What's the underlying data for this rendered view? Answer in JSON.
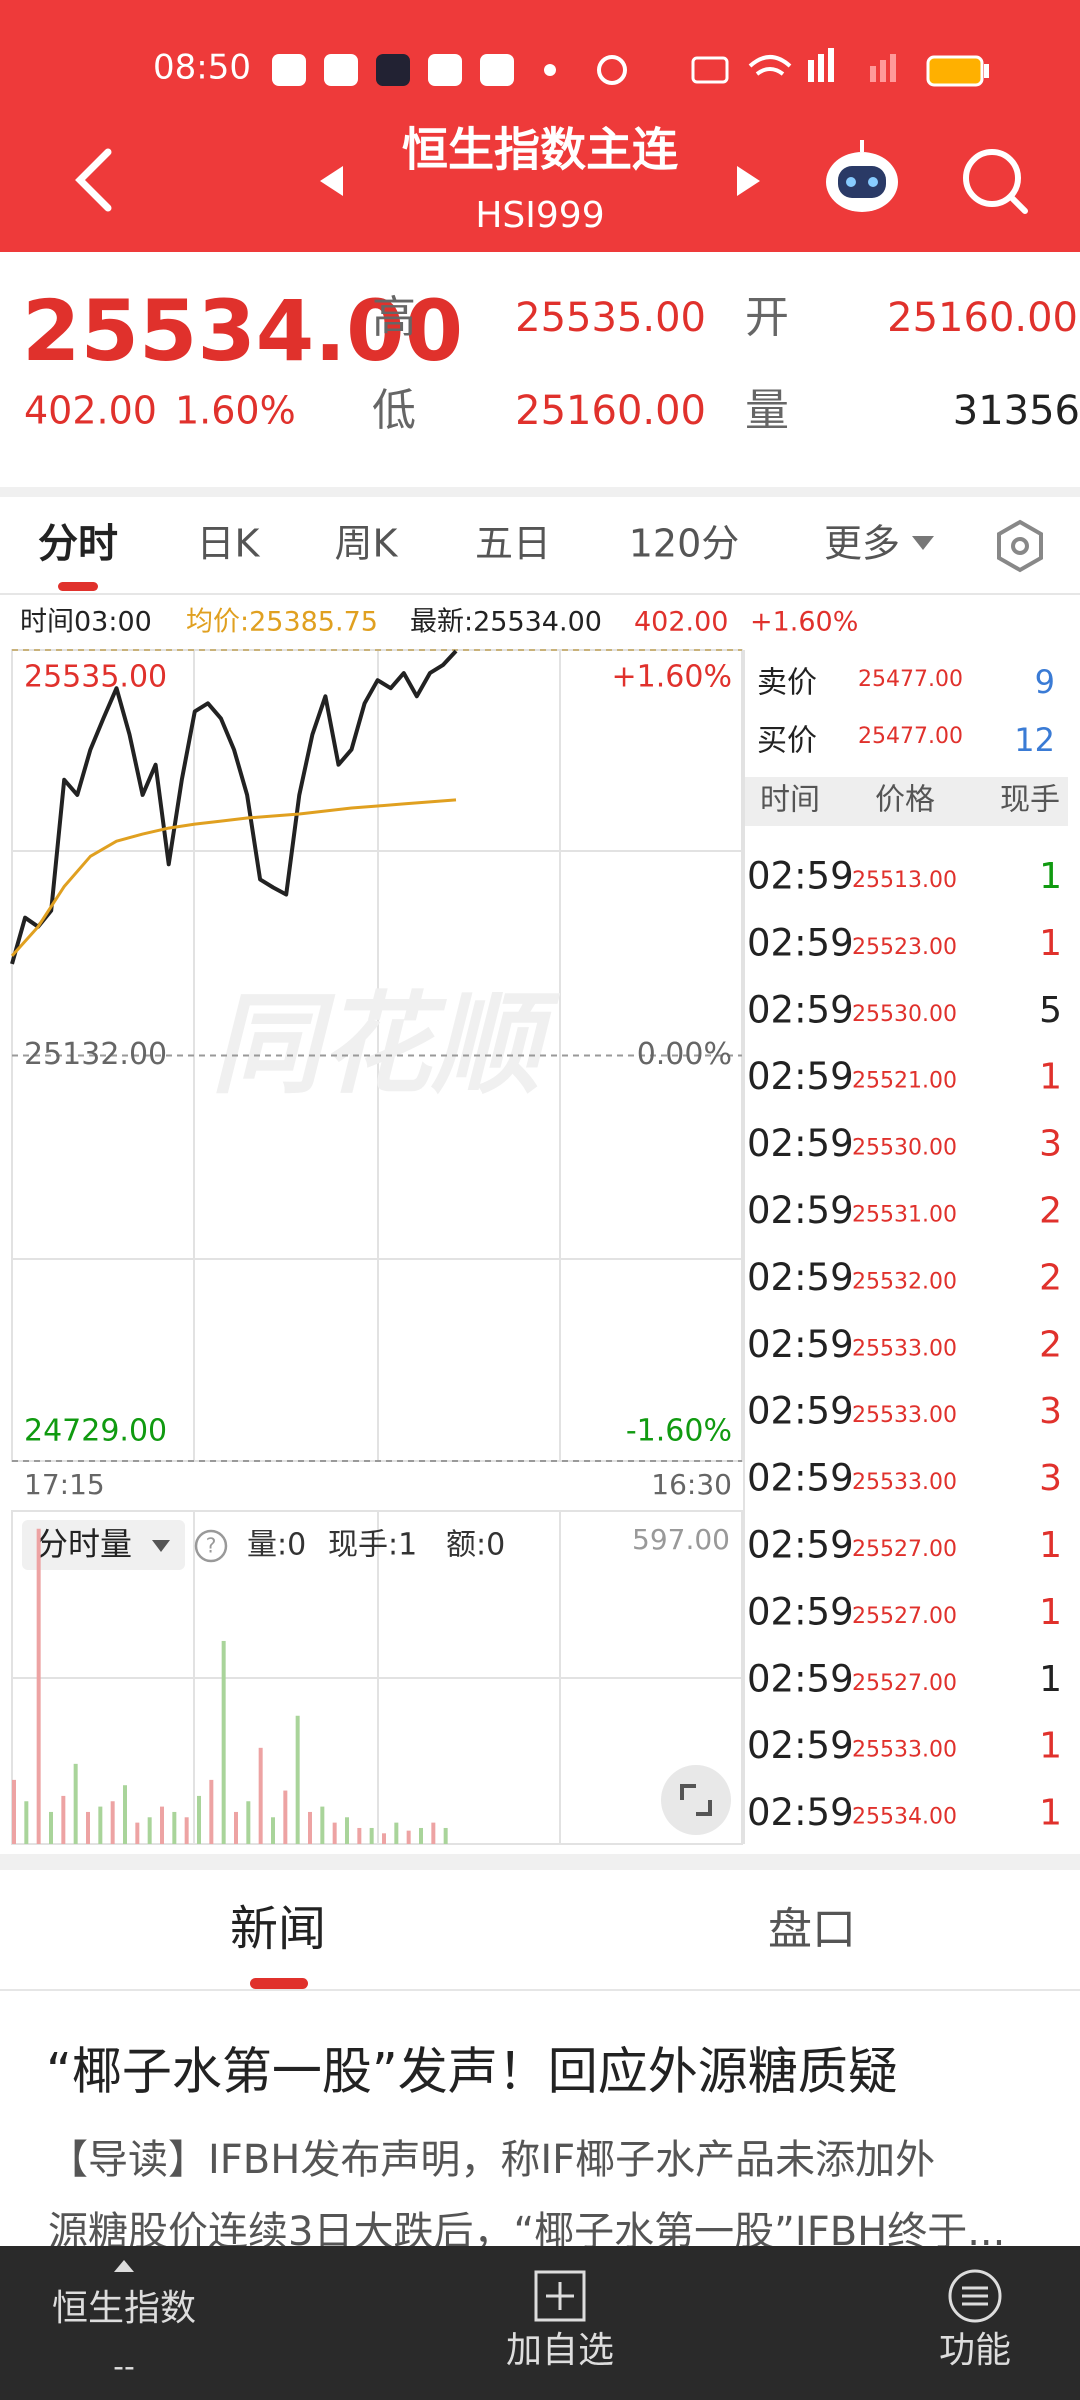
{
  "status_bar": {
    "time": "08:50"
  },
  "header": {
    "title": "恒生指数主连",
    "code": "HSI999"
  },
  "quote": {
    "price": "25534.00",
    "change": "402.00",
    "change_pct": "1.60%",
    "high_label": "高",
    "high": "25535.00",
    "open_label": "开",
    "open": "25160.00",
    "low_label": "低",
    "low": "25160.00",
    "volume_label": "量",
    "volume": "31356"
  },
  "tabs": [
    "分时",
    "日K",
    "周K",
    "五日",
    "120分",
    "更多"
  ],
  "info": {
    "time": "时间03:00",
    "avg": "均价:25385.75",
    "latest": "最新:25534.00",
    "change": "402.00",
    "change_pct": "+1.60%"
  },
  "chart_data": [
    {
      "type": "line",
      "watermark": "同花顺",
      "series": [
        {
          "color": "#222222",
          "values": [
            25223,
            25269,
            25260,
            25276,
            25406,
            25391,
            25436,
            25467,
            25497,
            25451,
            25391,
            25421,
            25322,
            25406,
            25474,
            25482,
            25467,
            25436,
            25391,
            25307,
            25299,
            25292,
            25391,
            25451,
            25489,
            25421,
            25436,
            25482,
            25505,
            25497,
            25512,
            25489,
            25512,
            25520,
            25534
          ]
        },
        {
          "color": "#e0a020",
          "values": [
            25231,
            25260,
            25300,
            25330,
            25345,
            25352,
            25358,
            25362,
            25365,
            25368,
            25370,
            25372,
            25375,
            25378,
            25380,
            25382,
            25384,
            25386
          ]
        }
      ],
      "ylim": [
        24729,
        25535
      ],
      "yticks": [
        {
          "value": 25535,
          "label": "25535.00"
        },
        {
          "value": 25132,
          "label": "25132.00"
        },
        {
          "value": 24729,
          "label": "24729.00"
        }
      ],
      "y2lim": [
        -1.6,
        1.6
      ],
      "y2ticks": [
        {
          "value": 1.6,
          "label": "+1.60%"
        },
        {
          "value": 0,
          "label": "0.00%"
        },
        {
          "value": -1.6,
          "label": "-1.60%"
        }
      ],
      "time_labels": [
        "17:15",
        "16:30"
      ]
    },
    {
      "type": "bar",
      "title": "分时量",
      "stats": [
        "量:0",
        "现手:1",
        "额:0"
      ],
      "ylim": [
        0,
        597
      ],
      "yticks": [
        {
          "value": 597,
          "label": "597.00"
        }
      ],
      "series": [
        {
          "color": "#eda3a3",
          "values": [
            120,
            590,
            90,
            60,
            80,
            40,
            70,
            50,
            120,
            60,
            180,
            100,
            60,
            40,
            30,
            20,
            25,
            40
          ]
        },
        {
          "color": "#a9d49a",
          "values": [
            80,
            60,
            150,
            70,
            110,
            50,
            60,
            90,
            380,
            80,
            50,
            240,
            70,
            50,
            30,
            40,
            30,
            30
          ]
        }
      ]
    }
  ],
  "order_book": {
    "ask_label": "卖价",
    "ask_price": "25477.00",
    "ask_qty": 9,
    "bid_label": "买价",
    "bid_price": "25477.00",
    "bid_qty": 12
  },
  "trades": {
    "headers": [
      "时间",
      "价格",
      "现手"
    ],
    "rows": [
      [
        "02:59",
        "25513.00",
        1
      ],
      [
        "02:59",
        "25523.00",
        1
      ],
      [
        "02:59",
        "25530.00",
        5
      ],
      [
        "02:59",
        "25521.00",
        1
      ],
      [
        "02:59",
        "25530.00",
        3
      ],
      [
        "02:59",
        "25531.00",
        2
      ],
      [
        "02:59",
        "25532.00",
        2
      ],
      [
        "02:59",
        "25533.00",
        2
      ],
      [
        "02:59",
        "25533.00",
        3
      ],
      [
        "02:59",
        "25533.00",
        3
      ],
      [
        "02:59",
        "25527.00",
        1
      ],
      [
        "02:59",
        "25527.00",
        1
      ],
      [
        "02:59",
        "25527.00",
        1
      ],
      [
        "02:59",
        "25533.00",
        1
      ],
      [
        "02:59",
        "25534.00",
        1
      ]
    ],
    "qty_colors": [
      "#109a10",
      "#e0312c",
      "#222222",
      "#e0312c",
      "#e0312c",
      "#e0312c",
      "#e0312c",
      "#e0312c",
      "#e0312c",
      "#e0312c",
      "#e0312c",
      "#e0312c",
      "#222222",
      "#e0312c",
      "#e0312c"
    ]
  },
  "news_tabs": [
    "新闻",
    "盘口"
  ],
  "article": {
    "headline": "“椰子水第一股”发声！回应外源糖质疑",
    "lines": [
      "【导读】IFBH发布声明，称IF椰子水产品未添加外",
      "源糖股价连续3日大跌后，“椰子水第一股”IFBH终于..."
    ]
  },
  "nav": {
    "index": "恒生指数",
    "index_value": "--",
    "add": "加自选",
    "func": "功能"
  }
}
